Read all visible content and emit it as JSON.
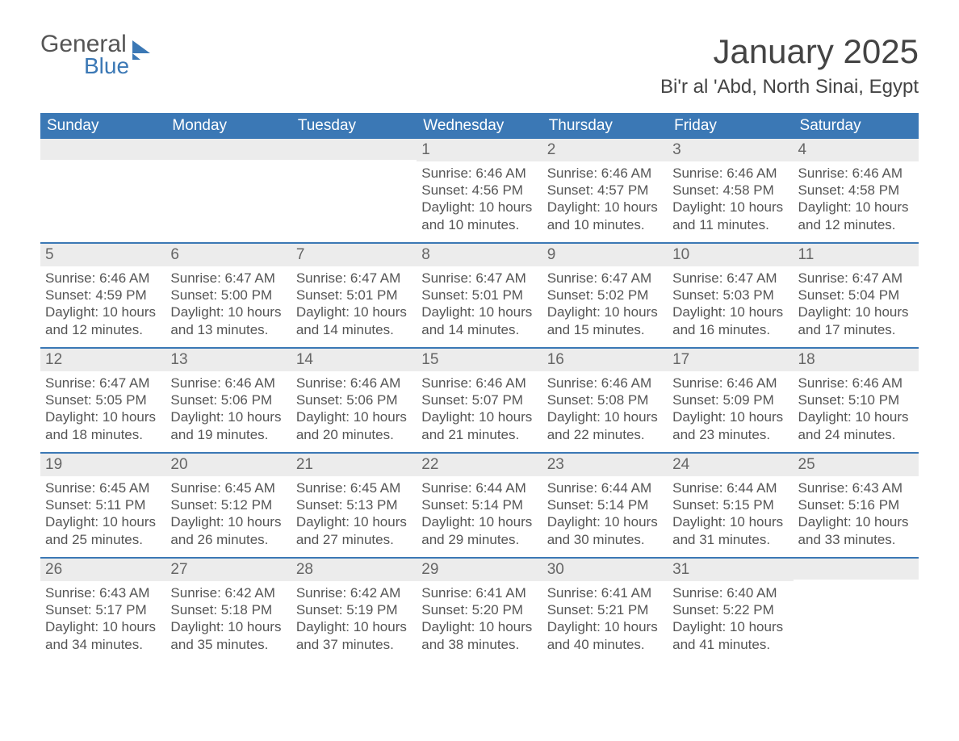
{
  "logo": {
    "text1": "General",
    "text2": "Blue"
  },
  "title": "January 2025",
  "location": "Bi'r al 'Abd, North Sinai, Egypt",
  "colors": {
    "header_bg": "#3b78b5",
    "header_text": "#ffffff",
    "daynum_bg": "#ececec",
    "text": "#555555",
    "week_border": "#3b78b5",
    "page_bg": "#ffffff"
  },
  "day_names": [
    "Sunday",
    "Monday",
    "Tuesday",
    "Wednesday",
    "Thursday",
    "Friday",
    "Saturday"
  ],
  "labels": {
    "sunrise": "Sunrise:",
    "sunset": "Sunset:",
    "daylight": "Daylight:"
  },
  "weeks": [
    [
      null,
      null,
      null,
      {
        "n": "1",
        "sunrise": "6:46 AM",
        "sunset": "4:56 PM",
        "daylight": "10 hours and 10 minutes."
      },
      {
        "n": "2",
        "sunrise": "6:46 AM",
        "sunset": "4:57 PM",
        "daylight": "10 hours and 10 minutes."
      },
      {
        "n": "3",
        "sunrise": "6:46 AM",
        "sunset": "4:58 PM",
        "daylight": "10 hours and 11 minutes."
      },
      {
        "n": "4",
        "sunrise": "6:46 AM",
        "sunset": "4:58 PM",
        "daylight": "10 hours and 12 minutes."
      }
    ],
    [
      {
        "n": "5",
        "sunrise": "6:46 AM",
        "sunset": "4:59 PM",
        "daylight": "10 hours and 12 minutes."
      },
      {
        "n": "6",
        "sunrise": "6:47 AM",
        "sunset": "5:00 PM",
        "daylight": "10 hours and 13 minutes."
      },
      {
        "n": "7",
        "sunrise": "6:47 AM",
        "sunset": "5:01 PM",
        "daylight": "10 hours and 14 minutes."
      },
      {
        "n": "8",
        "sunrise": "6:47 AM",
        "sunset": "5:01 PM",
        "daylight": "10 hours and 14 minutes."
      },
      {
        "n": "9",
        "sunrise": "6:47 AM",
        "sunset": "5:02 PM",
        "daylight": "10 hours and 15 minutes."
      },
      {
        "n": "10",
        "sunrise": "6:47 AM",
        "sunset": "5:03 PM",
        "daylight": "10 hours and 16 minutes."
      },
      {
        "n": "11",
        "sunrise": "6:47 AM",
        "sunset": "5:04 PM",
        "daylight": "10 hours and 17 minutes."
      }
    ],
    [
      {
        "n": "12",
        "sunrise": "6:47 AM",
        "sunset": "5:05 PM",
        "daylight": "10 hours and 18 minutes."
      },
      {
        "n": "13",
        "sunrise": "6:46 AM",
        "sunset": "5:06 PM",
        "daylight": "10 hours and 19 minutes."
      },
      {
        "n": "14",
        "sunrise": "6:46 AM",
        "sunset": "5:06 PM",
        "daylight": "10 hours and 20 minutes."
      },
      {
        "n": "15",
        "sunrise": "6:46 AM",
        "sunset": "5:07 PM",
        "daylight": "10 hours and 21 minutes."
      },
      {
        "n": "16",
        "sunrise": "6:46 AM",
        "sunset": "5:08 PM",
        "daylight": "10 hours and 22 minutes."
      },
      {
        "n": "17",
        "sunrise": "6:46 AM",
        "sunset": "5:09 PM",
        "daylight": "10 hours and 23 minutes."
      },
      {
        "n": "18",
        "sunrise": "6:46 AM",
        "sunset": "5:10 PM",
        "daylight": "10 hours and 24 minutes."
      }
    ],
    [
      {
        "n": "19",
        "sunrise": "6:45 AM",
        "sunset": "5:11 PM",
        "daylight": "10 hours and 25 minutes."
      },
      {
        "n": "20",
        "sunrise": "6:45 AM",
        "sunset": "5:12 PM",
        "daylight": "10 hours and 26 minutes."
      },
      {
        "n": "21",
        "sunrise": "6:45 AM",
        "sunset": "5:13 PM",
        "daylight": "10 hours and 27 minutes."
      },
      {
        "n": "22",
        "sunrise": "6:44 AM",
        "sunset": "5:14 PM",
        "daylight": "10 hours and 29 minutes."
      },
      {
        "n": "23",
        "sunrise": "6:44 AM",
        "sunset": "5:14 PM",
        "daylight": "10 hours and 30 minutes."
      },
      {
        "n": "24",
        "sunrise": "6:44 AM",
        "sunset": "5:15 PM",
        "daylight": "10 hours and 31 minutes."
      },
      {
        "n": "25",
        "sunrise": "6:43 AM",
        "sunset": "5:16 PM",
        "daylight": "10 hours and 33 minutes."
      }
    ],
    [
      {
        "n": "26",
        "sunrise": "6:43 AM",
        "sunset": "5:17 PM",
        "daylight": "10 hours and 34 minutes."
      },
      {
        "n": "27",
        "sunrise": "6:42 AM",
        "sunset": "5:18 PM",
        "daylight": "10 hours and 35 minutes."
      },
      {
        "n": "28",
        "sunrise": "6:42 AM",
        "sunset": "5:19 PM",
        "daylight": "10 hours and 37 minutes."
      },
      {
        "n": "29",
        "sunrise": "6:41 AM",
        "sunset": "5:20 PM",
        "daylight": "10 hours and 38 minutes."
      },
      {
        "n": "30",
        "sunrise": "6:41 AM",
        "sunset": "5:21 PM",
        "daylight": "10 hours and 40 minutes."
      },
      {
        "n": "31",
        "sunrise": "6:40 AM",
        "sunset": "5:22 PM",
        "daylight": "10 hours and 41 minutes."
      },
      null
    ]
  ]
}
